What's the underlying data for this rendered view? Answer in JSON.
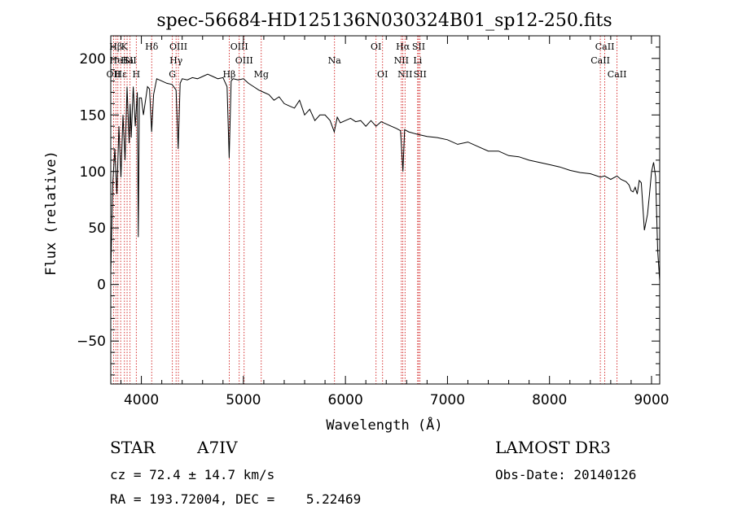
{
  "chart_data": {
    "type": "line",
    "title": "spec-56684-HD125136N030324B01_sp12-250.fits",
    "xlabel": "Wavelength (Å)",
    "ylabel": "Flux (relative)",
    "xlim": [
      3700,
      9080
    ],
    "ylim": [
      -88,
      220
    ],
    "xticks": [
      4000,
      5000,
      6000,
      7000,
      8000,
      9000
    ],
    "yticks": [
      -50,
      0,
      50,
      100,
      150,
      200
    ],
    "grid": false,
    "series": [
      {
        "name": "flux",
        "x": [
          3700,
          3720,
          3740,
          3760,
          3780,
          3800,
          3820,
          3840,
          3860,
          3880,
          3890,
          3900,
          3920,
          3940,
          3960,
          3970,
          3980,
          4000,
          4020,
          4060,
          4080,
          4101,
          4120,
          4150,
          4200,
          4250,
          4300,
          4340,
          4361,
          4380,
          4400,
          4450,
          4500,
          4550,
          4600,
          4650,
          4700,
          4750,
          4800,
          4840,
          4861,
          4880,
          4900,
          4950,
          5000,
          5050,
          5100,
          5150,
          5200,
          5250,
          5300,
          5350,
          5400,
          5450,
          5500,
          5550,
          5600,
          5650,
          5700,
          5750,
          5800,
          5850,
          5890,
          5920,
          5950,
          6000,
          6050,
          6100,
          6150,
          6200,
          6250,
          6300,
          6350,
          6400,
          6450,
          6500,
          6540,
          6563,
          6580,
          6620,
          6700,
          6800,
          6900,
          7000,
          7100,
          7200,
          7300,
          7400,
          7500,
          7600,
          7700,
          7800,
          7900,
          8000,
          8100,
          8200,
          8300,
          8400,
          8500,
          8540,
          8600,
          8662,
          8700,
          8750,
          8780,
          8800,
          8820,
          8840,
          8860,
          8880,
          8900,
          8930,
          8960,
          8980,
          9000,
          9020,
          9040,
          9060,
          9080
        ],
        "values": [
          10,
          90,
          120,
          80,
          140,
          95,
          150,
          110,
          175,
          125,
          160,
          130,
          175,
          140,
          170,
          42,
          165,
          165,
          150,
          175,
          173,
          135,
          168,
          182,
          180,
          178,
          177,
          172,
          120,
          178,
          182,
          181,
          183,
          182,
          184,
          186,
          184,
          182,
          183,
          175,
          112,
          180,
          182,
          181,
          182,
          178,
          175,
          172,
          170,
          168,
          163,
          166,
          160,
          158,
          156,
          163,
          150,
          155,
          145,
          150,
          150,
          145,
          135,
          148,
          143,
          145,
          147,
          144,
          145,
          140,
          145,
          140,
          144,
          142,
          140,
          138,
          136,
          100,
          137,
          135,
          133,
          131,
          130,
          128,
          124,
          126,
          122,
          118,
          118,
          114,
          113,
          110,
          108,
          106,
          104,
          101,
          99,
          98,
          95,
          96,
          93,
          96,
          93,
          91,
          88,
          83,
          82,
          86,
          80,
          92,
          90,
          48,
          62,
          80,
          100,
          108,
          95,
          30,
          3
        ]
      }
    ],
    "line_markers": [
      {
        "name": "Hβ",
        "wave": 3750,
        "row": 0
      },
      {
        "name": "OII",
        "wave": 3727,
        "row": 2
      },
      {
        "name": "HeI",
        "wave": 3770,
        "row": 1
      },
      {
        "name": "Hε",
        "wave": 3797,
        "row": 2
      },
      {
        "name": "K",
        "wave": 3834,
        "row": 0
      },
      {
        "name": "Ha",
        "wave": 3860,
        "row": 1
      },
      {
        "name": "SII",
        "wave": 3889,
        "row": 1
      },
      {
        "name": "H",
        "wave": 3950,
        "row": 2
      },
      {
        "name": "Hδ",
        "wave": 4101,
        "row": 0
      },
      {
        "name": "OIII",
        "wave": 4363,
        "row": 0
      },
      {
        "name": "Hγ",
        "wave": 4340,
        "row": 1
      },
      {
        "name": "G",
        "wave": 4304,
        "row": 2
      },
      {
        "name": "OIII",
        "wave": 4959,
        "row": 0
      },
      {
        "name": "OIII",
        "wave": 5007,
        "row": 1
      },
      {
        "name": "Hβ",
        "wave": 4861,
        "row": 2
      },
      {
        "name": "Mg",
        "wave": 5175,
        "row": 2
      },
      {
        "name": "Na",
        "wave": 5893,
        "row": 1
      },
      {
        "name": "OI",
        "wave": 6300,
        "row": 0
      },
      {
        "name": "OI",
        "wave": 6364,
        "row": 2
      },
      {
        "name": "Hα",
        "wave": 6563,
        "row": 0
      },
      {
        "name": "NII",
        "wave": 6548,
        "row": 1
      },
      {
        "name": "NII",
        "wave": 6584,
        "row": 2
      },
      {
        "name": "SII",
        "wave": 6717,
        "row": 0
      },
      {
        "name": "Li",
        "wave": 6708,
        "row": 1
      },
      {
        "name": "SII",
        "wave": 6731,
        "row": 2
      },
      {
        "name": "CaII",
        "wave": 8542,
        "row": 0
      },
      {
        "name": "CaII",
        "wave": 8498,
        "row": 1
      },
      {
        "name": "CaII",
        "wave": 8662,
        "row": 2
      }
    ],
    "marker_color": "#cc0000"
  },
  "info": {
    "class": "STAR",
    "subclass": "A7IV",
    "survey": "LAMOST DR3",
    "cz": "cz = 72.4 ± 14.7 km/s",
    "obs_date": "Obs-Date: 20140126",
    "coords": "RA = 193.72004, DEC =    5.22469"
  }
}
